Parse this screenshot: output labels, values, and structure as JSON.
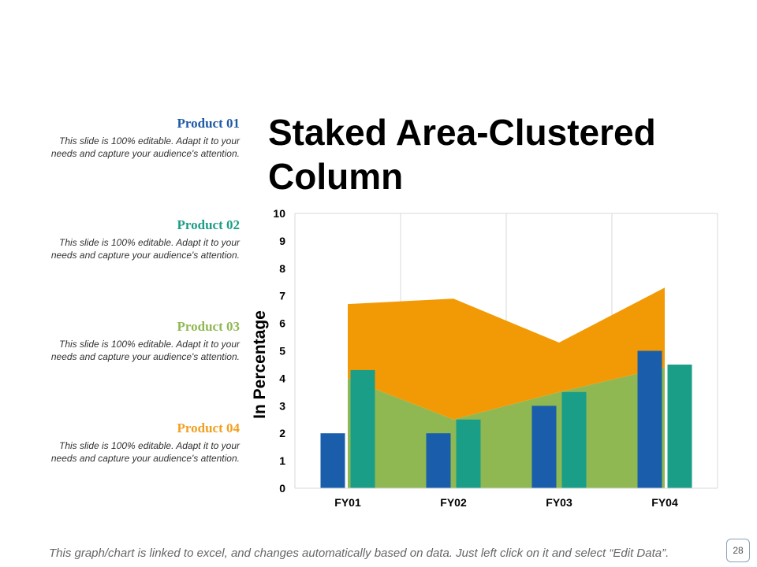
{
  "title": "Staked Area-Clustered Column",
  "products": [
    {
      "name": "Product 01",
      "desc": "This slide is 100% editable. Adapt it to your needs and capture your audience's attention.",
      "color": "#1f5aa6"
    },
    {
      "name": "Product 02",
      "desc": "This slide is 100% editable. Adapt it to your needs and capture your audience's attention.",
      "color": "#1a9e87"
    },
    {
      "name": "Product 03",
      "desc": "This slide is 100% editable. Adapt it to your needs and capture your audience's attention.",
      "color": "#8fb853"
    },
    {
      "name": "Product 04",
      "desc": "This slide is 100% editable. Adapt it to your needs and capture your audience's attention.",
      "color": "#f0a020"
    }
  ],
  "footer_note": "This graph/chart is linked to excel, and changes automatically based on data. Just left click on it and select “Edit Data”.",
  "page_number": "28",
  "chart_data": {
    "type": "bar",
    "categories": [
      "FY01",
      "FY02",
      "FY03",
      "FY04"
    ],
    "ylabel": "In Percentage",
    "ylim": [
      0,
      10
    ],
    "yticks": [
      0,
      1,
      2,
      3,
      4,
      5,
      6,
      7,
      8,
      9,
      10
    ],
    "grid": "vertical",
    "series": [
      {
        "name": "Product 01",
        "kind": "column",
        "color": "#1a5eab",
        "values": [
          2,
          2,
          3,
          5
        ]
      },
      {
        "name": "Product 02",
        "kind": "column",
        "color": "#1a9e87",
        "values": [
          4.3,
          2.5,
          3.5,
          4.5
        ]
      },
      {
        "name": "Product 03",
        "kind": "stacked-area",
        "color": "#8fb853",
        "values": [
          4,
          2.5,
          3.5,
          4.4
        ]
      },
      {
        "name": "Product 04",
        "kind": "stacked-area",
        "color": "#f29a05",
        "values": [
          2.7,
          4.4,
          1.8,
          2.9
        ]
      }
    ]
  }
}
